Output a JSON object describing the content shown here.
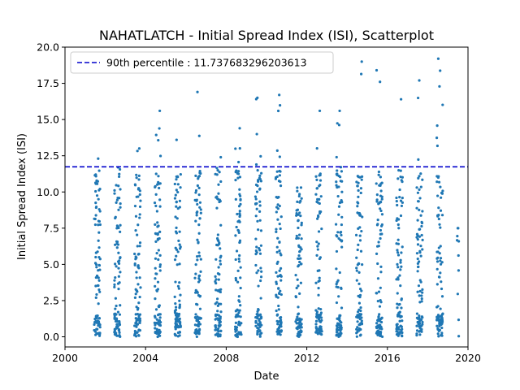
{
  "chart_data": {
    "type": "scatter",
    "title": "NAHATLATCH - Initial Spread Index (ISI), Scatterplot",
    "xlabel": "Date",
    "ylabel": "Initial Spread Index (ISI)",
    "xlim": [
      2000,
      2020
    ],
    "ylim": [
      -0.7,
      20
    ],
    "x_ticks": [
      "2000",
      "2004",
      "2008",
      "2012",
      "2016",
      "2020"
    ],
    "y_ticks": [
      "0.0",
      "2.5",
      "5.0",
      "7.5",
      "10.0",
      "12.5",
      "15.0",
      "17.5",
      "20.0"
    ],
    "point_color": "#1f77b4",
    "reference_line": {
      "label": "90th percentile : 11.737683296203613",
      "value": 11.737683296203613,
      "x_start": 2000,
      "x_end": 2020,
      "color": "#0000cc",
      "style": "dashed"
    },
    "legend_position": "upper-left",
    "seasons": [
      {
        "start": 2001.45,
        "end": 2001.75,
        "max": 12.3
      },
      {
        "start": 2002.45,
        "end": 2002.75,
        "max": 11.7
      },
      {
        "start": 2003.45,
        "end": 2003.75,
        "max": 13.0
      },
      {
        "start": 2004.45,
        "end": 2004.75,
        "max": 15.6
      },
      {
        "start": 2005.45,
        "end": 2005.75,
        "max": 13.6
      },
      {
        "start": 2006.45,
        "end": 2006.75,
        "max": 16.9
      },
      {
        "start": 2007.45,
        "end": 2007.75,
        "max": 12.4
      },
      {
        "start": 2008.45,
        "end": 2008.75,
        "max": 14.4
      },
      {
        "start": 2009.45,
        "end": 2009.75,
        "max": 16.5
      },
      {
        "start": 2010.45,
        "end": 2010.75,
        "max": 16.7
      },
      {
        "start": 2011.45,
        "end": 2011.75,
        "max": 10.3
      },
      {
        "start": 2012.45,
        "end": 2012.75,
        "max": 15.6
      },
      {
        "start": 2013.45,
        "end": 2013.75,
        "max": 15.6
      },
      {
        "start": 2014.45,
        "end": 2014.75,
        "max": 19.0
      },
      {
        "start": 2015.45,
        "end": 2015.75,
        "max": 18.4
      },
      {
        "start": 2016.45,
        "end": 2016.75,
        "max": 16.4
      },
      {
        "start": 2017.45,
        "end": 2017.75,
        "max": 17.7
      },
      {
        "start": 2018.45,
        "end": 2018.75,
        "max": 19.2
      },
      {
        "start": 2019.45,
        "end": 2019.55,
        "max": 7.5
      }
    ]
  }
}
